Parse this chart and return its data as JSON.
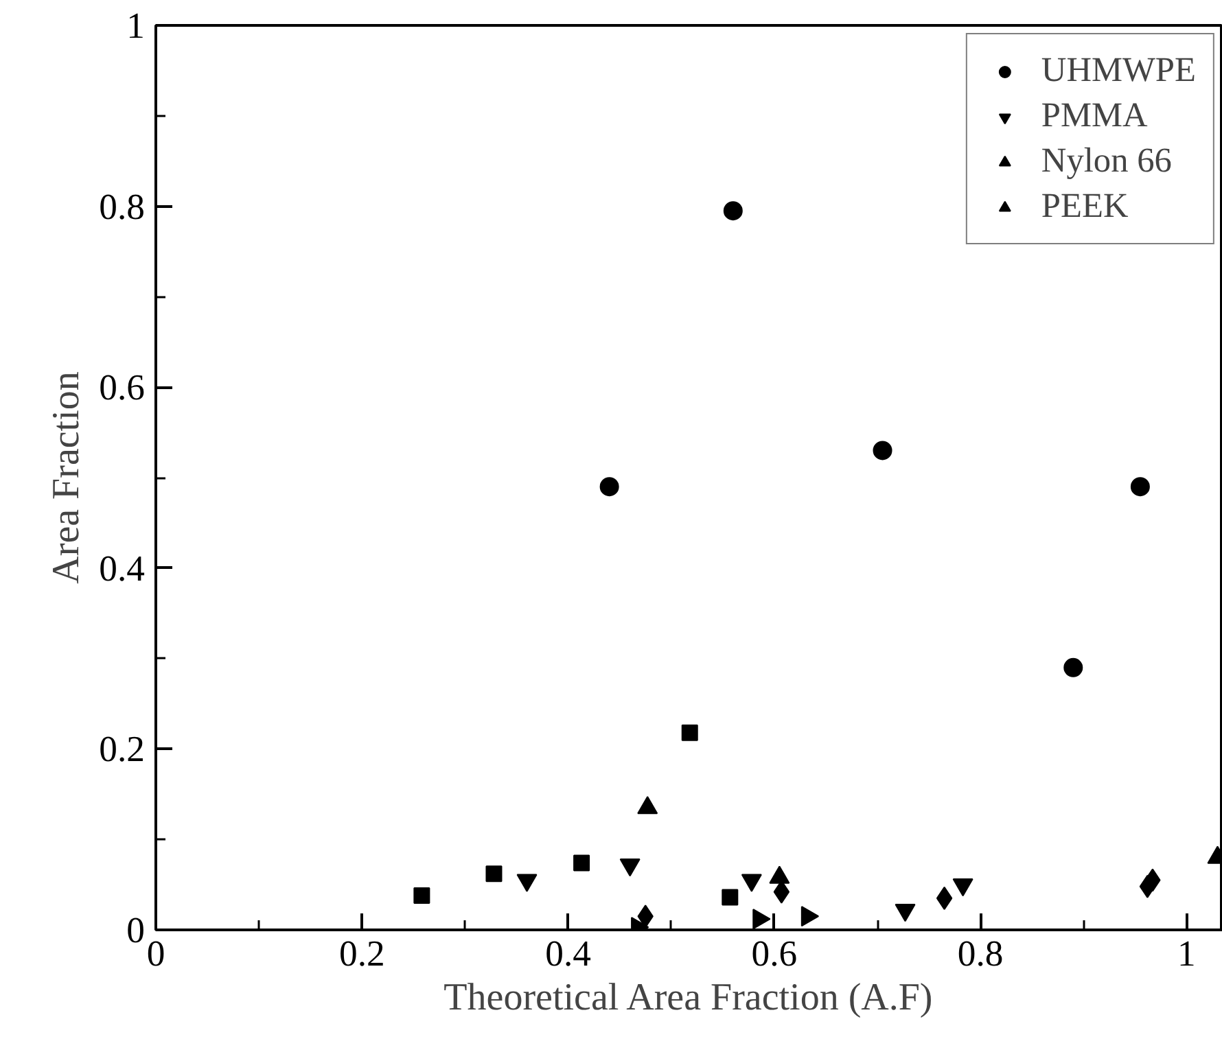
{
  "chart_data": {
    "type": "scatter",
    "xlabel": "Theoretical Area Fraction (A.F)",
    "ylabel": "Area Fraction",
    "xlim": [
      0,
      1.035
    ],
    "ylim": [
      0,
      1
    ],
    "xticks": [
      0,
      {
        "value": 0.1,
        "label": null
      },
      0.2,
      {
        "value": 0.3,
        "label": null
      },
      0.4,
      {
        "value": 0.5,
        "label": null
      },
      0.6,
      {
        "value": 0.7,
        "label": null
      },
      0.8,
      {
        "value": 0.9,
        "label": null
      },
      1
    ],
    "yticks": [
      0,
      {
        "value": 0.1,
        "label": null
      },
      0.2,
      {
        "value": 0.3,
        "label": null
      },
      0.4,
      {
        "value": 0.5,
        "label": null
      },
      0.6,
      {
        "value": 0.7,
        "label": null
      },
      0.8,
      {
        "value": 0.9,
        "label": null
      },
      1
    ],
    "grid": false,
    "legend": "top right",
    "series": [
      {
        "name": "UHMWPE",
        "color": "#000000",
        "marker": "circle",
        "x": [
          0.44,
          0.56,
          0.705,
          0.89,
          0.955
        ],
        "values": [
          0.49,
          0.795,
          0.53,
          0.29,
          0.49
        ]
      },
      {
        "color": "#000000",
        "marker": "square",
        "x": [
          0.258,
          0.328,
          0.413,
          0.518,
          0.557
        ],
        "values": [
          0.038,
          0.062,
          0.074,
          0.218,
          0.036
        ]
      },
      {
        "color": "#000000",
        "marker": "diamond",
        "x": [
          0.475,
          0.607,
          0.765,
          0.962,
          0.967
        ],
        "values": [
          0.015,
          0.042,
          0.035,
          0.048,
          0.055
        ]
      },
      {
        "name": "PMMA",
        "color": "#000000",
        "marker": "triangle_down",
        "x": [
          0.36,
          0.46,
          0.578,
          0.727,
          0.783
        ],
        "values": [
          0.055,
          0.072,
          0.055,
          0.022,
          0.05
        ]
      },
      {
        "name": "Nylon 66",
        "color": "#000000",
        "marker": "triangle_right",
        "x": [
          0.467,
          0.585,
          0.632
        ],
        "values": [
          0.003,
          0.012,
          0.015
        ]
      },
      {
        "name": "PEEK",
        "color": "#000000",
        "marker": "triangle",
        "x": [
          0.477,
          0.605,
          1.03
        ],
        "values": [
          0.135,
          0.058,
          0.08
        ]
      }
    ]
  }
}
